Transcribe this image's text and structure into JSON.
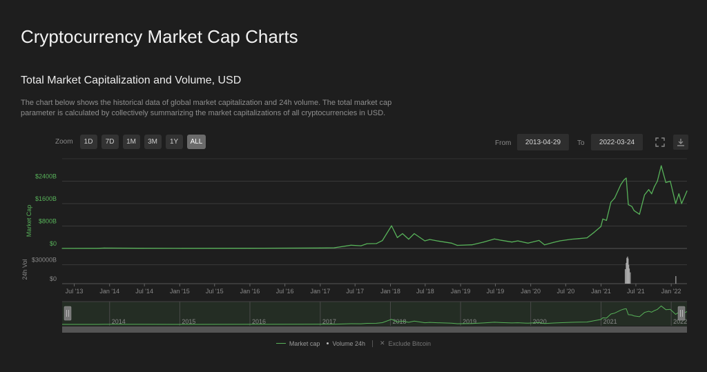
{
  "page_title": "Cryptocurrency Market Cap Charts",
  "section_title": "Total Market Capitalization and Volume, USD",
  "description": "The chart below shows the historical data of global market capitalization and 24h volume. The total market cap parameter is calculated by collectively summarizing the market capitalizations of all cryptocurrencies in USD.",
  "zoom": {
    "label": "Zoom",
    "buttons": [
      "1D",
      "7D",
      "1M",
      "3M",
      "1Y",
      "ALL"
    ],
    "active": "ALL"
  },
  "range": {
    "from_label": "From",
    "from_value": "2013-04-29",
    "to_label": "To",
    "to_value": "2022-03-24"
  },
  "icons": {
    "fullscreen": "fullscreen-icon",
    "download": "download-icon"
  },
  "colors": {
    "market_cap": "#58b35a",
    "volume": "#aaaaaa",
    "background": "#1e1e1e"
  },
  "legend": {
    "market_cap": "Market cap",
    "volume": "Volume 24h",
    "exclude": "Exclude Bitcoin"
  },
  "chart_data": {
    "type": "line",
    "main_axis_title": "Market Cap",
    "vol_axis_title": "24h Vol",
    "y_ticks": [
      "$2400B",
      "$1600B",
      "$800B",
      "$0"
    ],
    "y_tick_values": [
      2400,
      1600,
      800,
      0
    ],
    "vol_ticks": [
      "$30000B",
      "$0"
    ],
    "vol_tick_values": [
      30000,
      0
    ],
    "x_ticks": [
      "Jul '13",
      "Jan '14",
      "Jul '14",
      "Jan '15",
      "Jul '15",
      "Jan '16",
      "Jul '16",
      "Jan '17",
      "Jul '17",
      "Jan '18",
      "Jul '18",
      "Jan '19",
      "Jul '19",
      "Jan '20",
      "Jul '20",
      "Jan '21",
      "Jul '21",
      "Jan '22"
    ],
    "x_tick_dates": [
      "2013-07-01",
      "2014-01-01",
      "2014-07-01",
      "2015-01-01",
      "2015-07-01",
      "2016-01-01",
      "2016-07-01",
      "2017-01-01",
      "2017-07-01",
      "2018-01-01",
      "2018-07-01",
      "2019-01-01",
      "2019-07-01",
      "2020-01-01",
      "2020-07-01",
      "2021-01-01",
      "2021-07-01",
      "2022-01-01"
    ],
    "navigator_labels": [
      "2014",
      "2015",
      "2016",
      "2017",
      "2018",
      "2019",
      "2020",
      "2021",
      "2022"
    ],
    "navigator_dates": [
      "2014-01-01",
      "2015-01-01",
      "2016-01-01",
      "2017-01-01",
      "2018-01-01",
      "2019-01-01",
      "2020-01-01",
      "2021-01-01",
      "2022-01-01"
    ],
    "x_range": [
      "2013-04-29",
      "2022-03-24"
    ],
    "ylim": [
      0,
      3200
    ],
    "vol_ylim": [
      0,
      45000
    ],
    "grid": true,
    "market_cap": {
      "name": "Market cap",
      "dates": [
        "2013-04-29",
        "2013-11-01",
        "2013-12-04",
        "2014-06-01",
        "2015-01-15",
        "2016-01-01",
        "2016-12-31",
        "2017-03-15",
        "2017-06-10",
        "2017-08-01",
        "2017-09-01",
        "2017-10-20",
        "2017-11-20",
        "2018-01-07",
        "2018-02-06",
        "2018-03-05",
        "2018-04-06",
        "2018-05-05",
        "2018-06-29",
        "2018-07-25",
        "2018-09-01",
        "2018-11-15",
        "2018-12-15",
        "2019-03-01",
        "2019-05-01",
        "2019-06-26",
        "2019-08-01",
        "2019-09-25",
        "2019-10-26",
        "2019-12-18",
        "2020-02-13",
        "2020-03-13",
        "2020-04-30",
        "2020-06-01",
        "2020-07-31",
        "2020-09-05",
        "2020-10-20",
        "2020-11-25",
        "2020-12-31",
        "2021-01-10",
        "2021-01-29",
        "2021-02-21",
        "2021-03-13",
        "2021-04-14",
        "2021-05-01",
        "2021-05-12",
        "2021-05-23",
        "2021-06-10",
        "2021-06-22",
        "2021-07-20",
        "2021-08-15",
        "2021-09-06",
        "2021-09-21",
        "2021-10-05",
        "2021-10-21",
        "2021-11-10",
        "2021-12-04",
        "2021-12-27",
        "2022-01-24",
        "2022-02-10",
        "2022-02-24",
        "2022-03-24"
      ],
      "values": [
        1.5,
        5,
        16,
        7,
        4,
        7,
        18,
        25,
        115,
        95,
        170,
        175,
        280,
        810,
        390,
        530,
        330,
        530,
        270,
        320,
        270,
        190,
        110,
        130,
        230,
        340,
        290,
        230,
        270,
        190,
        285,
        130,
        220,
        270,
        330,
        350,
        380,
        570,
        780,
        1050,
        1000,
        1650,
        1800,
        2280,
        2450,
        2510,
        1560,
        1500,
        1350,
        1220,
        1910,
        2100,
        1950,
        2200,
        2400,
        2950,
        2350,
        2400,
        1600,
        1950,
        1600,
        2050
      ]
    },
    "volume_24h": {
      "name": "Volume 24h",
      "dates": [
        "2021-05-07",
        "2021-05-12",
        "2021-05-15",
        "2021-05-19",
        "2021-05-22",
        "2021-05-25",
        "2021-05-28",
        "2021-06-02",
        "2022-01-25"
      ],
      "values": [
        23000,
        33000,
        41000,
        43000,
        40000,
        30000,
        24000,
        18000,
        12000
      ]
    }
  }
}
